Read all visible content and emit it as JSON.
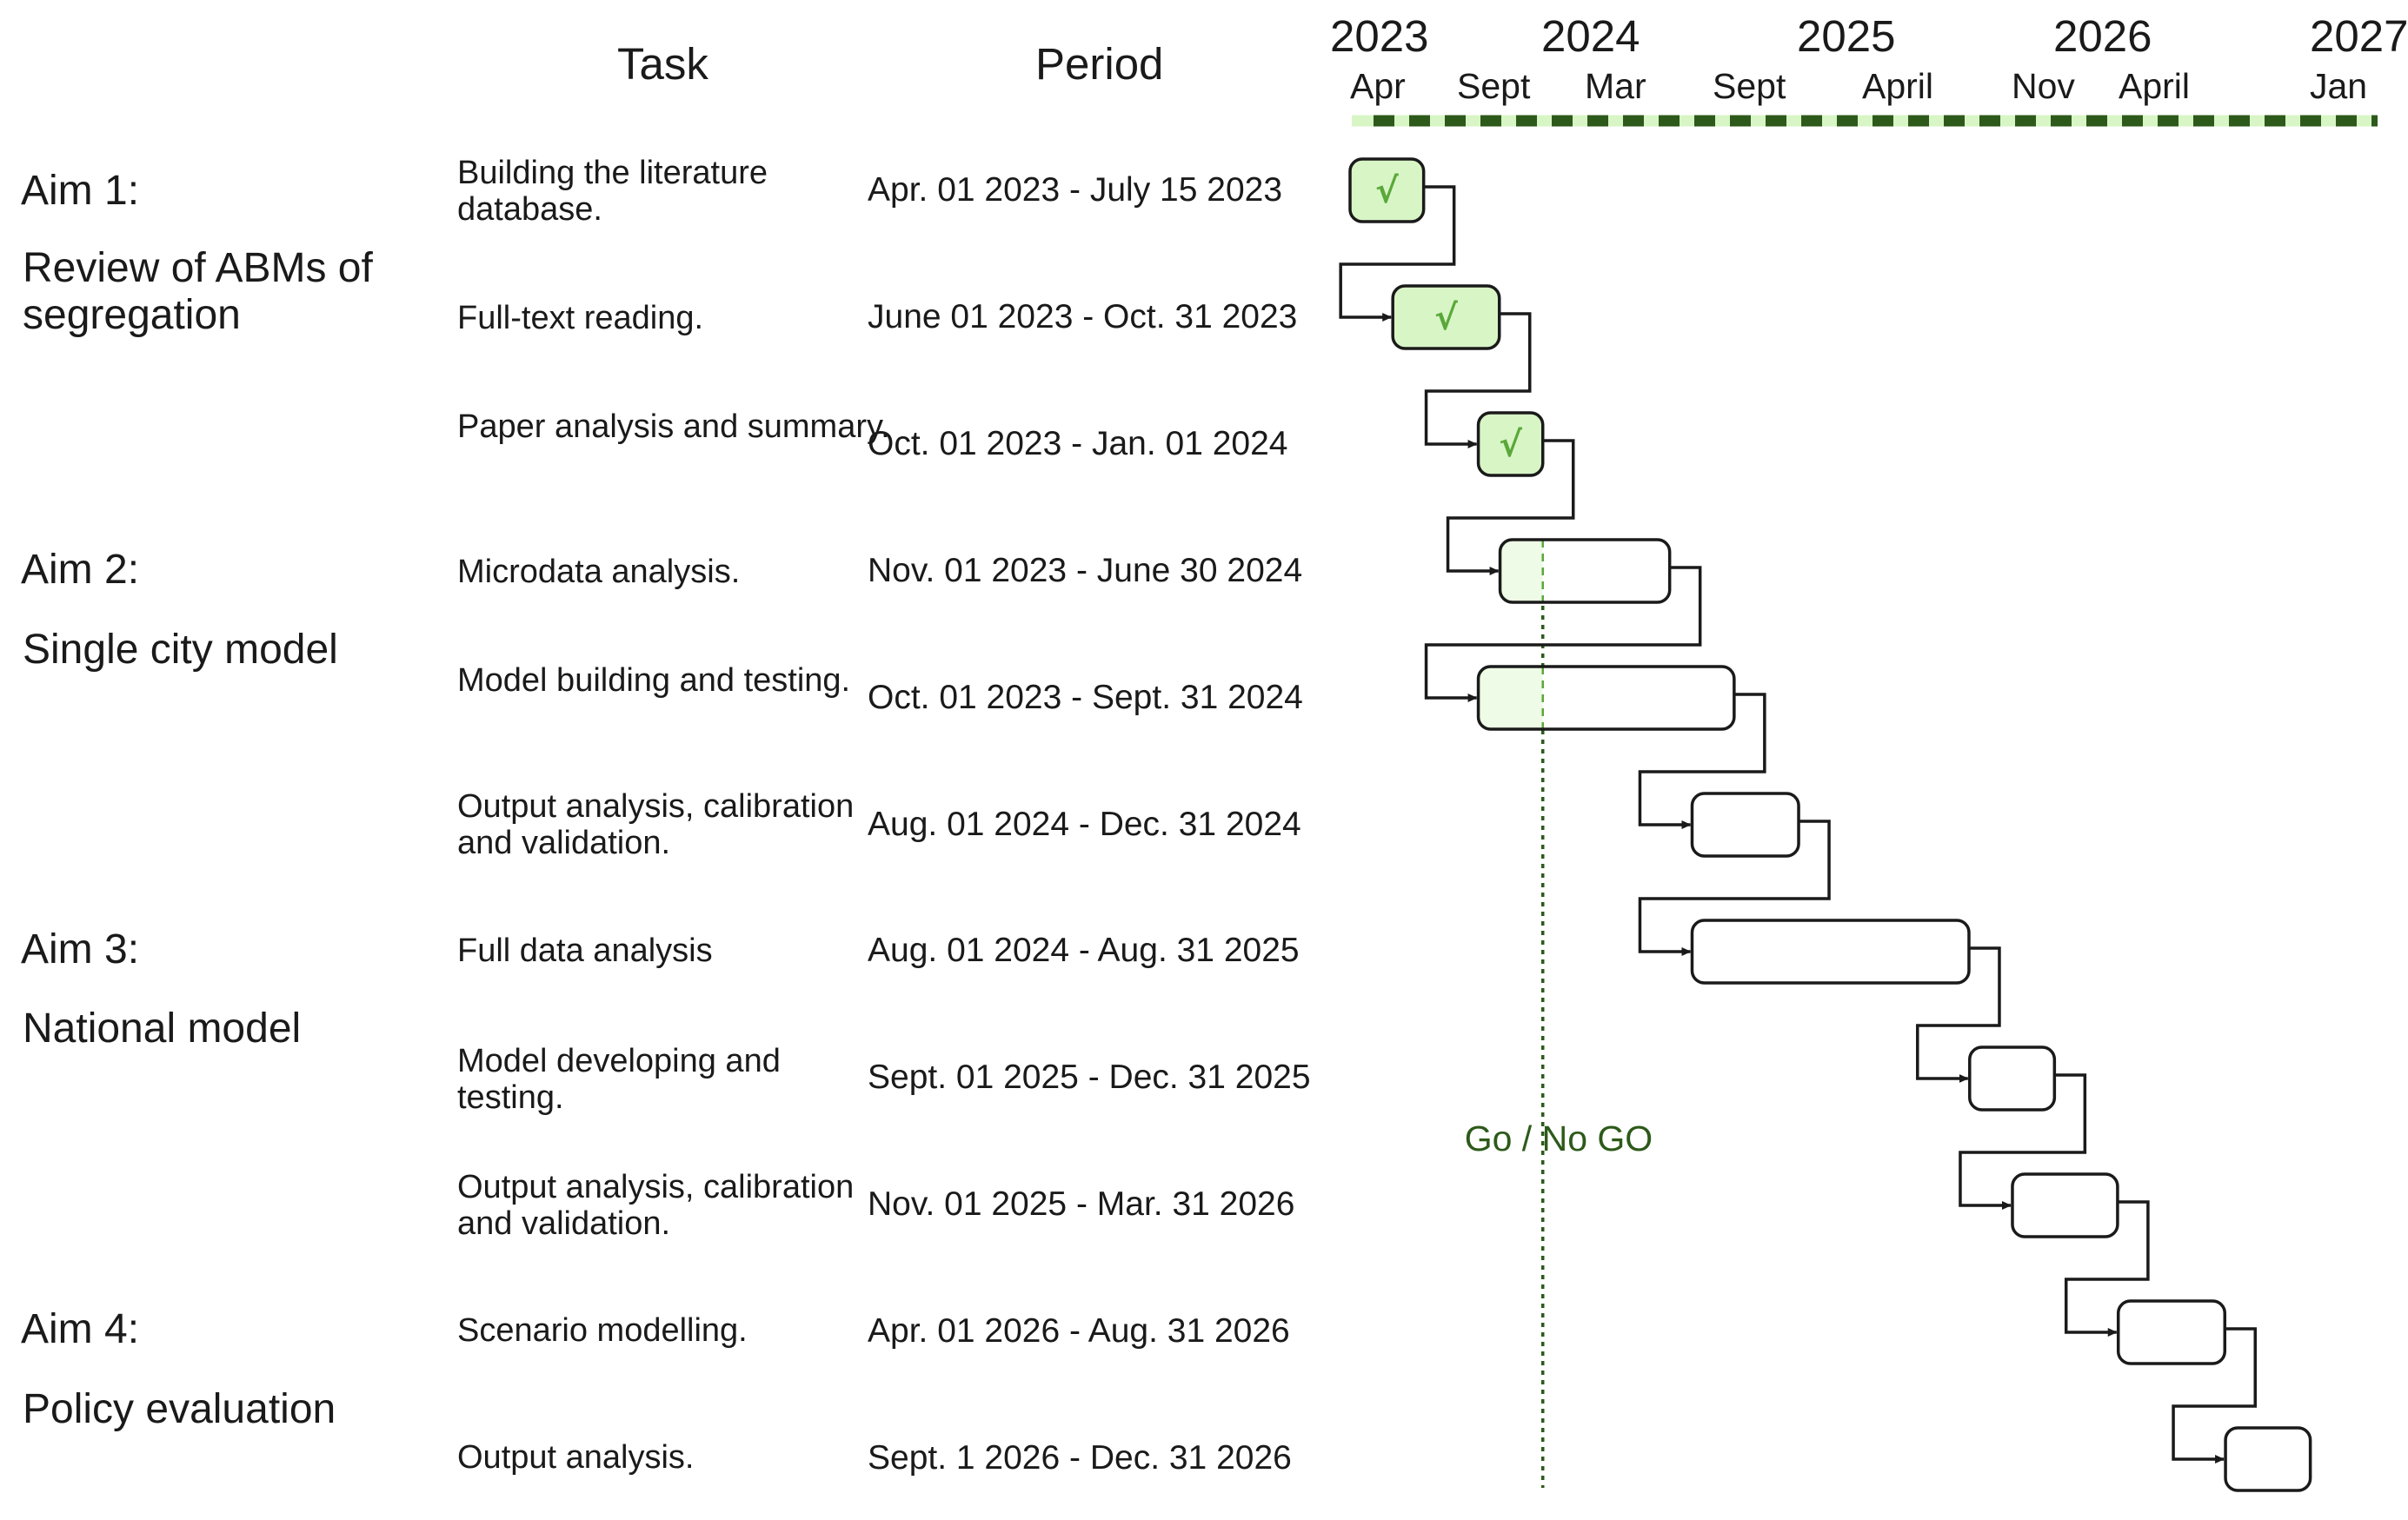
{
  "headers": {
    "task": "Task",
    "period": "Period"
  },
  "timeline": {
    "years": [
      "2023",
      "2024",
      "2025",
      "2026",
      "2027"
    ],
    "months": [
      "Apr",
      "Sept",
      "Mar",
      "Sept",
      "April",
      "Nov",
      "April",
      "Jan"
    ]
  },
  "aims": [
    {
      "label": "Aim 1:",
      "title": "Review of ABMs of segregation"
    },
    {
      "label": "Aim 2:",
      "title": "Single city model"
    },
    {
      "label": "Aim 3:",
      "title": "National model"
    },
    {
      "label": "Aim 4:",
      "title": "Policy evaluation"
    }
  ],
  "tasks": [
    {
      "name": "Building the literature database.",
      "period": "Apr. 01 2023 - July 15 2023",
      "status": "done",
      "start": "2023-04-01",
      "end": "2023-07-15"
    },
    {
      "name": "Full-text reading.",
      "period": "June 01 2023 - Oct. 31 2023",
      "status": "done",
      "start": "2023-06-01",
      "end": "2023-10-31"
    },
    {
      "name": "Paper analysis and summary.",
      "period": "Oct. 01 2023 - Jan. 01 2024",
      "status": "done",
      "start": "2023-10-01",
      "end": "2024-01-01"
    },
    {
      "name": "Microdata analysis.",
      "period": "Nov. 01 2023 - June 30 2024",
      "status": "in-progress",
      "start": "2023-11-01",
      "end": "2024-06-30"
    },
    {
      "name": "Model building and testing.",
      "period": "Oct. 01 2023 - Sept. 31 2024",
      "status": "in-progress",
      "start": "2023-10-01",
      "end": "2024-09-30"
    },
    {
      "name": "Output analysis, calibration and validation.",
      "period": "Aug. 01 2024 - Dec. 31 2024",
      "status": "planned",
      "start": "2024-08-01",
      "end": "2024-12-31"
    },
    {
      "name": "Full data analysis",
      "period": "Aug. 01 2024 - Aug. 31 2025",
      "status": "planned",
      "start": "2024-08-01",
      "end": "2025-08-31"
    },
    {
      "name": "Model developing and testing.",
      "period": "Sept. 01 2025 - Dec. 31 2025",
      "status": "planned",
      "start": "2025-09-01",
      "end": "2025-12-31"
    },
    {
      "name": "Output analysis, calibration and validation.",
      "period": "Nov. 01 2025 - Mar. 31 2026",
      "status": "planned",
      "start": "2025-11-01",
      "end": "2026-03-31"
    },
    {
      "name": "Scenario modelling.",
      "period": "Apr. 01 2026 - Aug. 31 2026",
      "status": "planned",
      "start": "2026-04-01",
      "end": "2026-08-31"
    },
    {
      "name": "Output analysis.",
      "period": "Sept. 1 2026 - Dec. 31 2026",
      "status": "planned",
      "start": "2026-09-01",
      "end": "2026-12-31"
    }
  ],
  "milestone": {
    "label": "Go / No GO",
    "date": "2024-01-01"
  },
  "colors": {
    "line": "#1a1a1a",
    "done_fill": "#d8f5c6",
    "progress_fill": "#eefbe6",
    "check": "#5aa83a",
    "timeline": "#2d5a1a",
    "timeline_light": "#d8f5c6",
    "milestone": "#2d5a1a"
  }
}
